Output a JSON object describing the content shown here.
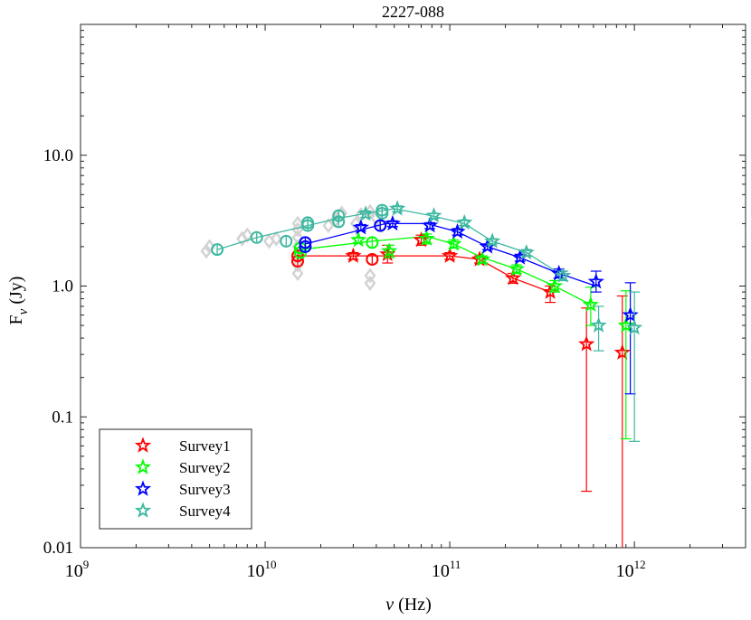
{
  "chart_data": {
    "type": "scatter",
    "title": "2227-088",
    "xlabel_symbol": "ν",
    "xlabel_unit": "(Hz)",
    "ylabel_main": "F",
    "ylabel_sub": "ν",
    "ylabel_unit": "(Jy)",
    "xscale": "log",
    "yscale": "log",
    "xlim": [
      1000000000.0,
      4000000000000.0
    ],
    "ylim": [
      0.01,
      100
    ],
    "x_ticks": [
      {
        "value": 1000000000.0,
        "base": "10",
        "exp": "9"
      },
      {
        "value": 10000000000.0,
        "base": "10",
        "exp": "10"
      },
      {
        "value": 100000000000.0,
        "base": "10",
        "exp": "11"
      },
      {
        "value": 1000000000000.0,
        "base": "10",
        "exp": "12"
      }
    ],
    "y_ticks": [
      {
        "value": 0.01,
        "label": "0.01"
      },
      {
        "value": 0.1,
        "label": "0.1"
      },
      {
        "value": 1,
        "label": "1.0"
      },
      {
        "value": 10,
        "label": "10.0"
      }
    ],
    "grid": false,
    "legend_position": "bottom-left",
    "archival": {
      "color": "#d3d3d3",
      "points": [
        [
          4800000000.0,
          1.85
        ],
        [
          5000000000.0,
          2.0
        ],
        [
          7500000000.0,
          2.3
        ],
        [
          8000000000.0,
          2.45
        ],
        [
          10500000000.0,
          2.2
        ],
        [
          11500000000.0,
          2.3
        ],
        [
          15000000000.0,
          1.25
        ],
        [
          15000000000.0,
          1.45
        ],
        [
          15000000000.0,
          1.7
        ],
        [
          15000000000.0,
          2.0
        ],
        [
          15000000000.0,
          2.35
        ],
        [
          15000000000.0,
          2.7
        ],
        [
          15000000000.0,
          3.0
        ],
        [
          22000000000.0,
          2.9
        ],
        [
          24000000000.0,
          3.2
        ],
        [
          26000000000.0,
          3.6
        ],
        [
          31000000000.0,
          3.0
        ],
        [
          33000000000.0,
          3.5
        ],
        [
          37000000000.0,
          1.05
        ],
        [
          37000000000.0,
          1.2
        ],
        [
          37000000000.0,
          3.7
        ],
        [
          40000000000.0,
          3.3
        ],
        [
          43000000000.0,
          2.9
        ]
      ]
    },
    "series": [
      {
        "name": "Survey1",
        "color": "#ff0000",
        "line": [
          [
            15000000000.0,
            1.7
          ],
          [
            100000000000.0,
            1.7
          ],
          [
            145000000000.0,
            1.6
          ],
          [
            220000000000.0,
            1.15
          ],
          [
            350000000000.0,
            0.9
          ]
        ],
        "circles": [
          [
            15000000000.0,
            1.55
          ],
          [
            15000000000.0,
            1.7
          ],
          [
            38000000000.0,
            1.6
          ]
        ],
        "stars": [
          {
            "x": 30000000000.0,
            "y": 1.7,
            "lo": 1.6,
            "hi": 1.8
          },
          {
            "x": 46000000000.0,
            "y": 1.75,
            "lo": 1.5,
            "hi": 2.05
          },
          {
            "x": 70000000000.0,
            "y": 2.25,
            "lo": 2.05,
            "hi": 2.45
          },
          {
            "x": 100000000000.0,
            "y": 1.7,
            "lo": 1.6,
            "hi": 1.8
          },
          {
            "x": 145000000000.0,
            "y": 1.6,
            "lo": 1.5,
            "hi": 1.7
          },
          {
            "x": 220000000000.0,
            "y": 1.15,
            "lo": 1.05,
            "hi": 1.25
          },
          {
            "x": 350000000000.0,
            "y": 0.9,
            "lo": 0.75,
            "hi": 1.0
          },
          {
            "x": 550000000000.0,
            "y": 0.36,
            "lo": 0.027,
            "hi": 0.68
          },
          {
            "x": 860000000000.0,
            "y": 0.31,
            "lo": 0.005,
            "hi": 0.84
          }
        ]
      },
      {
        "name": "Survey2",
        "color": "#00ff00",
        "line": [
          [
            15500000000.0,
            1.9
          ],
          [
            38000000000.0,
            2.2
          ],
          [
            75000000000.0,
            2.4
          ],
          [
            105000000000.0,
            2.1
          ],
          [
            150000000000.0,
            1.65
          ],
          [
            230000000000.0,
            1.35
          ],
          [
            370000000000.0,
            1.0
          ],
          [
            580000000000.0,
            0.72
          ]
        ],
        "circles": [
          [
            15500000000.0,
            1.8
          ],
          [
            15500000000.0,
            1.95
          ],
          [
            38000000000.0,
            2.15
          ]
        ],
        "stars": [
          {
            "x": 32000000000.0,
            "y": 2.25,
            "lo": 2.15,
            "hi": 2.35
          },
          {
            "x": 47000000000.0,
            "y": 1.85,
            "lo": 1.65,
            "hi": 2.05
          },
          {
            "x": 75000000000.0,
            "y": 2.3,
            "lo": 2.1,
            "hi": 2.5
          },
          {
            "x": 105000000000.0,
            "y": 2.1,
            "lo": 1.95,
            "hi": 2.25
          },
          {
            "x": 150000000000.0,
            "y": 1.6,
            "lo": 1.5,
            "hi": 1.7
          },
          {
            "x": 230000000000.0,
            "y": 1.35,
            "lo": 1.25,
            "hi": 1.45
          },
          {
            "x": 370000000000.0,
            "y": 1.0,
            "lo": 0.9,
            "hi": 1.1
          },
          {
            "x": 580000000000.0,
            "y": 0.72,
            "lo": 0.5,
            "hi": 0.98
          },
          {
            "x": 900000000000.0,
            "y": 0.5,
            "lo": 0.068,
            "hi": 0.92
          }
        ]
      },
      {
        "name": "Survey3",
        "color": "#0000ff",
        "line": [
          [
            16500000000.0,
            2.1
          ],
          [
            45000000000.0,
            3.0
          ],
          [
            75000000000.0,
            3.0
          ],
          [
            110000000000.0,
            2.6
          ],
          [
            160000000000.0,
            2.0
          ],
          [
            240000000000.0,
            1.65
          ],
          [
            390000000000.0,
            1.25
          ],
          [
            620000000000.0,
            1.0
          ]
        ],
        "circles": [
          [
            16500000000.0,
            2.0
          ],
          [
            16500000000.0,
            2.15
          ],
          [
            42000000000.0,
            2.9
          ]
        ],
        "stars": [
          {
            "x": 33000000000.0,
            "y": 2.8,
            "lo": 2.65,
            "hi": 2.95
          },
          {
            "x": 49000000000.0,
            "y": 3.0,
            "lo": 2.85,
            "hi": 3.15
          },
          {
            "x": 78000000000.0,
            "y": 2.9,
            "lo": 2.75,
            "hi": 3.05
          },
          {
            "x": 110000000000.0,
            "y": 2.6,
            "lo": 2.45,
            "hi": 2.75
          },
          {
            "x": 160000000000.0,
            "y": 2.0,
            "lo": 1.9,
            "hi": 2.1
          },
          {
            "x": 240000000000.0,
            "y": 1.65,
            "lo": 1.55,
            "hi": 1.75
          },
          {
            "x": 390000000000.0,
            "y": 1.25,
            "lo": 1.15,
            "hi": 1.35
          },
          {
            "x": 620000000000.0,
            "y": 1.08,
            "lo": 0.9,
            "hi": 1.3
          },
          {
            "x": 950000000000.0,
            "y": 0.6,
            "lo": 0.15,
            "hi": 1.06
          }
        ]
      },
      {
        "name": "Survey4",
        "color": "#3cb8a0",
        "line": [
          [
            5500000000.0,
            1.9
          ],
          [
            9000000000.0,
            2.35
          ],
          [
            17000000000.0,
            2.9
          ],
          [
            25000000000.0,
            3.3
          ],
          [
            50000000000.0,
            3.9
          ],
          [
            80000000000.0,
            3.45
          ],
          [
            120000000000.0,
            3.0
          ],
          [
            170000000000.0,
            2.2
          ],
          [
            260000000000.0,
            1.8
          ],
          [
            410000000000.0,
            1.2
          ]
        ],
        "circles": [
          [
            5500000000.0,
            1.9
          ],
          [
            9000000000.0,
            2.35
          ],
          [
            13000000000.0,
            2.2
          ],
          [
            17000000000.0,
            2.9
          ],
          [
            17000000000.0,
            3.05
          ],
          [
            25000000000.0,
            3.1
          ],
          [
            25000000000.0,
            3.45
          ],
          [
            43000000000.0,
            3.6
          ],
          [
            43000000000.0,
            3.8
          ]
        ],
        "stars": [
          {
            "x": 35000000000.0,
            "y": 3.55,
            "lo": 3.35,
            "hi": 3.75
          },
          {
            "x": 52000000000.0,
            "y": 3.9,
            "lo": 3.7,
            "hi": 4.1
          },
          {
            "x": 82000000000.0,
            "y": 3.45,
            "lo": 3.3,
            "hi": 3.6
          },
          {
            "x": 120000000000.0,
            "y": 3.05,
            "lo": 2.9,
            "hi": 3.2
          },
          {
            "x": 170000000000.0,
            "y": 2.2,
            "lo": 2.1,
            "hi": 2.3
          },
          {
            "x": 260000000000.0,
            "y": 1.8,
            "lo": 1.7,
            "hi": 1.9
          },
          {
            "x": 410000000000.0,
            "y": 1.2,
            "lo": 1.1,
            "hi": 1.3
          },
          {
            "x": 640000000000.0,
            "y": 0.5,
            "lo": 0.32,
            "hi": 0.7
          },
          {
            "x": 1000000000000.0,
            "y": 0.48,
            "lo": 0.065,
            "hi": 0.9
          }
        ]
      }
    ]
  }
}
